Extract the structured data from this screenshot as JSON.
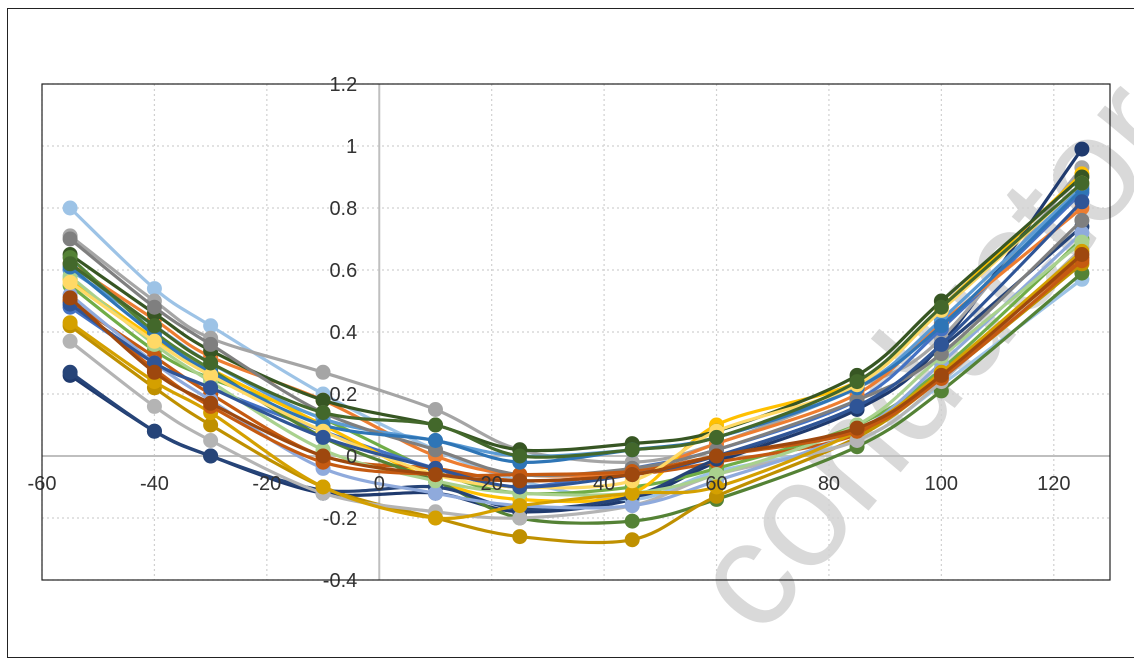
{
  "chart_data": {
    "type": "line",
    "title": "",
    "xlabel": "",
    "ylabel": "",
    "xlim": [
      -60,
      130
    ],
    "ylim": [
      -0.4,
      1.2
    ],
    "x_ticks": [
      -60,
      -40,
      -20,
      0,
      20,
      40,
      60,
      80,
      100,
      120
    ],
    "y_ticks": [
      -0.4,
      -0.2,
      0,
      0.2,
      0.4,
      0.6,
      0.8,
      1,
      1.2
    ],
    "x_tick_labels": [
      "-60",
      "-40",
      "-20",
      "0",
      "20",
      "40",
      "60",
      "80",
      "100",
      "120"
    ],
    "y_tick_labels": [
      "-0.4",
      "-0.2",
      "0",
      "0.2",
      "0.4",
      "0.6",
      "0.8",
      "1",
      "1.2"
    ],
    "grid": true,
    "legend": "none",
    "smooth": true,
    "x": [
      -55,
      -40,
      -30,
      -10,
      10,
      25,
      45,
      60,
      85,
      100,
      125
    ],
    "series": [
      {
        "color": "#1f3a6e",
        "values": [
          0.26,
          0.08,
          0.0,
          -0.12,
          -0.12,
          -0.18,
          -0.14,
          -0.02,
          0.15,
          0.36,
          0.99
        ]
      },
      {
        "color": "#9dc3e6",
        "values": [
          0.8,
          0.54,
          0.42,
          0.2,
          0.02,
          -0.08,
          -0.14,
          -0.05,
          0.05,
          0.23,
          0.57
        ]
      },
      {
        "color": "#a5a5a5",
        "values": [
          0.71,
          0.5,
          0.38,
          0.27,
          0.15,
          0.02,
          -0.02,
          0.04,
          0.22,
          0.38,
          0.93
        ]
      },
      {
        "color": "#70ad47",
        "values": [
          0.55,
          0.34,
          0.25,
          0.12,
          -0.05,
          -0.12,
          -0.1,
          -0.04,
          0.1,
          0.28,
          0.7
        ]
      },
      {
        "color": "#4472c4",
        "values": [
          0.48,
          0.3,
          0.22,
          0.08,
          -0.04,
          -0.1,
          -0.04,
          0.02,
          0.18,
          0.41,
          0.85
        ]
      },
      {
        "color": "#ed7d31",
        "values": [
          0.62,
          0.44,
          0.32,
          0.18,
          0.0,
          -0.06,
          -0.05,
          0.04,
          0.2,
          0.43,
          0.8
        ]
      },
      {
        "color": "#ffc000",
        "values": [
          0.57,
          0.38,
          0.28,
          0.1,
          -0.08,
          -0.14,
          -0.12,
          0.1,
          0.24,
          0.48,
          0.91
        ]
      },
      {
        "color": "#5b9bd5",
        "values": [
          0.6,
          0.42,
          0.3,
          0.12,
          0.05,
          0.0,
          0.02,
          0.06,
          0.22,
          0.44,
          0.87
        ]
      },
      {
        "color": "#375623",
        "values": [
          0.65,
          0.46,
          0.34,
          0.18,
          0.1,
          0.02,
          0.04,
          0.08,
          0.26,
          0.5,
          0.9
        ]
      },
      {
        "color": "#c55a11",
        "values": [
          0.5,
          0.32,
          0.2,
          0.0,
          -0.04,
          -0.08,
          -0.06,
          -0.02,
          0.07,
          0.27,
          0.64
        ]
      },
      {
        "color": "#548235",
        "values": [
          0.64,
          0.4,
          0.28,
          0.06,
          -0.08,
          -0.2,
          -0.21,
          -0.14,
          0.03,
          0.21,
          0.59
        ]
      },
      {
        "color": "#bf9000",
        "values": [
          0.42,
          0.22,
          0.1,
          -0.1,
          -0.2,
          -0.26,
          -0.27,
          -0.13,
          0.06,
          0.25,
          0.62
        ]
      },
      {
        "color": "#264478",
        "values": [
          0.27,
          0.08,
          0.0,
          -0.11,
          -0.1,
          -0.17,
          -0.13,
          -0.01,
          0.16,
          0.35,
          0.74
        ]
      },
      {
        "color": "#b4b4b4",
        "values": [
          0.37,
          0.16,
          0.05,
          -0.12,
          -0.18,
          -0.2,
          -0.16,
          -0.06,
          0.05,
          0.24,
          0.67
        ]
      },
      {
        "color": "#8faadc",
        "values": [
          0.52,
          0.3,
          0.18,
          -0.04,
          -0.12,
          -0.16,
          -0.16,
          -0.08,
          0.08,
          0.3,
          0.72
        ]
      },
      {
        "color": "#a9d18e",
        "values": [
          0.58,
          0.36,
          0.24,
          0.02,
          -0.08,
          -0.12,
          -0.12,
          -0.06,
          0.1,
          0.32,
          0.69
        ]
      },
      {
        "color": "#d4a000",
        "values": [
          0.43,
          0.24,
          0.14,
          -0.1,
          -0.2,
          -0.16,
          -0.12,
          -0.1,
          0.08,
          0.27,
          0.66
        ]
      },
      {
        "color": "#7f7f7f",
        "values": [
          0.7,
          0.48,
          0.36,
          0.14,
          0.02,
          -0.06,
          -0.04,
          0.02,
          0.18,
          0.33,
          0.76
        ]
      },
      {
        "color": "#c55a11",
        "values": [
          0.5,
          0.28,
          0.16,
          -0.02,
          -0.06,
          -0.06,
          -0.05,
          0.0,
          0.08,
          0.25,
          0.63
        ]
      },
      {
        "color": "#2e75b6",
        "values": [
          0.61,
          0.39,
          0.27,
          0.1,
          0.05,
          -0.02,
          0.02,
          0.06,
          0.22,
          0.42,
          0.86
        ]
      },
      {
        "color": "#ffd966",
        "values": [
          0.56,
          0.37,
          0.26,
          0.08,
          -0.06,
          -0.1,
          -0.08,
          0.08,
          0.23,
          0.47,
          0.88
        ]
      },
      {
        "color": "#2f5597",
        "values": [
          0.49,
          0.3,
          0.22,
          0.06,
          -0.04,
          -0.1,
          -0.06,
          0.0,
          0.16,
          0.36,
          0.82
        ]
      },
      {
        "color": "#9e480e",
        "values": [
          0.51,
          0.27,
          0.17,
          0.0,
          -0.06,
          -0.08,
          -0.06,
          0.0,
          0.09,
          0.26,
          0.65
        ]
      },
      {
        "color": "#43682b",
        "values": [
          0.62,
          0.42,
          0.3,
          0.14,
          0.1,
          0.0,
          0.02,
          0.06,
          0.24,
          0.48,
          0.88
        ]
      }
    ]
  },
  "watermark": "conductor"
}
